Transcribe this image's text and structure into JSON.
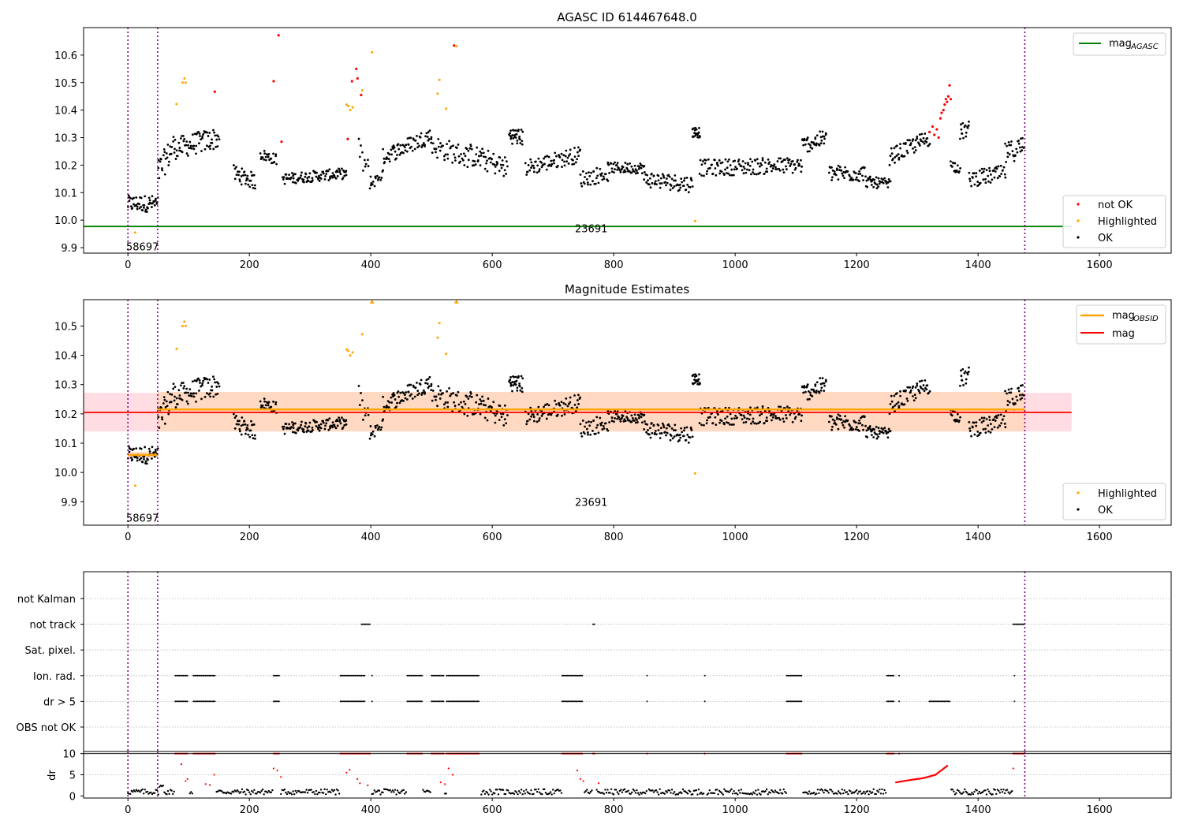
{
  "figure": {
    "title_top": "AGASC ID 614467648.0",
    "title_mid": "Magnitude Estimates"
  },
  "colors": {
    "ok": "#000000",
    "highlighted": "#ffa500",
    "not_ok": "#ff0000",
    "agasc_line": "#008000",
    "mag_line": "#ff0000",
    "mag_obsid_line": "#ffa500",
    "band_outer": "#ffdde3",
    "band_inner": "#ffd9c2",
    "vline": "#800080",
    "grid": "#b0b0b0"
  },
  "chart_data": [
    {
      "type": "scatter",
      "title": "AGASC ID 614467648.0",
      "xlim": [
        -73,
        1718
      ],
      "ylim": [
        9.88,
        10.7
      ],
      "xticks": [
        "0",
        "200",
        "400",
        "600",
        "800",
        "1000",
        "1200",
        "1400",
        "1600"
      ],
      "yticks": [
        "9.9",
        "10.0",
        "10.1",
        "10.2",
        "10.3",
        "10.4",
        "10.5",
        "10.6"
      ],
      "legend_upper": {
        "position": "upper right",
        "entries": [
          "mag_AGASC"
        ]
      },
      "legend_lower": {
        "position": "lower right",
        "entries": [
          "not OK",
          "Highlighted",
          "OK"
        ]
      },
      "agasc_mag": 9.977,
      "agasc_line_x_range": [
        -73,
        1554
      ],
      "obsid_vlines": [
        0,
        49,
        1477
      ],
      "obsid_labels": [
        {
          "text": "58697",
          "x": 24,
          "y": 9.905
        },
        {
          "text": "23691",
          "x": 763,
          "y": 9.97
        }
      ],
      "series": [
        {
          "name": "not OK",
          "points": [
            [
              240,
              10.505
            ],
            [
              248,
              10.672
            ],
            [
              253,
              10.285
            ],
            [
              362,
              10.295
            ],
            [
              369,
              10.505
            ],
            [
              376,
              10.55
            ],
            [
              378,
              10.515
            ],
            [
              384,
              10.455
            ],
            [
              143,
              10.467
            ],
            [
              537,
              10.635
            ],
            [
              1320,
              10.32
            ],
            [
              1325,
              10.34
            ],
            [
              1328,
              10.31
            ],
            [
              1332,
              10.33
            ],
            [
              1335,
              10.3
            ],
            [
              1338,
              10.37
            ],
            [
              1340,
              10.39
            ],
            [
              1343,
              10.4
            ],
            [
              1345,
              10.42
            ],
            [
              1347,
              10.44
            ],
            [
              1349,
              10.43
            ],
            [
              1351,
              10.45
            ],
            [
              1353,
              10.49
            ],
            [
              1355,
              10.44
            ]
          ]
        },
        {
          "name": "Highlighted",
          "points": [
            [
              12,
              9.955
            ],
            [
              80,
              10.422
            ],
            [
              90,
              10.5
            ],
            [
              93,
              10.515
            ],
            [
              95,
              10.5
            ],
            [
              360,
              10.42
            ],
            [
              363,
              10.415
            ],
            [
              366,
              10.4
            ],
            [
              370,
              10.41
            ],
            [
              386,
              10.472
            ],
            [
              402,
              10.61
            ],
            [
              510,
              10.46
            ],
            [
              513,
              10.51
            ],
            [
              524,
              10.405
            ],
            [
              541,
              10.632
            ],
            [
              934,
              9.997
            ]
          ]
        },
        {
          "name": "OK",
          "segments": [
            {
              "x0": 0,
              "x1": 49,
              "n": 50,
              "y0": 10.06,
              "y1": 10.06,
              "spread": 0.03
            },
            {
              "x0": 50,
              "x1": 75,
              "n": 25,
              "y0": 10.17,
              "y1": 10.27,
              "spread": 0.05
            },
            {
              "x0": 76,
              "x1": 150,
              "n": 70,
              "y0": 10.26,
              "y1": 10.3,
              "spread": 0.04
            },
            {
              "x0": 175,
              "x1": 210,
              "n": 35,
              "y0": 10.17,
              "y1": 10.14,
              "spread": 0.03
            },
            {
              "x0": 218,
              "x1": 245,
              "n": 25,
              "y0": 10.24,
              "y1": 10.22,
              "spread": 0.02
            },
            {
              "x0": 255,
              "x1": 360,
              "n": 100,
              "y0": 10.15,
              "y1": 10.17,
              "spread": 0.02
            },
            {
              "x0": 380,
              "x1": 400,
              "n": 12,
              "y0": 10.25,
              "y1": 10.15,
              "spread": 0.05
            },
            {
              "x0": 400,
              "x1": 420,
              "n": 15,
              "y0": 10.13,
              "y1": 10.17,
              "spread": 0.02
            },
            {
              "x0": 420,
              "x1": 500,
              "n": 70,
              "y0": 10.23,
              "y1": 10.31,
              "spread": 0.03
            },
            {
              "x0": 500,
              "x1": 560,
              "n": 45,
              "y0": 10.27,
              "y1": 10.23,
              "spread": 0.04
            },
            {
              "x0": 560,
              "x1": 625,
              "n": 55,
              "y0": 10.24,
              "y1": 10.19,
              "spread": 0.04
            },
            {
              "x0": 628,
              "x1": 650,
              "n": 30,
              "y0": 10.31,
              "y1": 10.3,
              "spread": 0.03
            },
            {
              "x0": 655,
              "x1": 745,
              "n": 75,
              "y0": 10.19,
              "y1": 10.24,
              "spread": 0.03
            },
            {
              "x0": 745,
              "x1": 790,
              "n": 35,
              "y0": 10.15,
              "y1": 10.17,
              "spread": 0.03
            },
            {
              "x0": 790,
              "x1": 850,
              "n": 55,
              "y0": 10.19,
              "y1": 10.19,
              "spread": 0.02
            },
            {
              "x0": 850,
              "x1": 930,
              "n": 70,
              "y0": 10.15,
              "y1": 10.13,
              "spread": 0.03
            },
            {
              "x0": 930,
              "x1": 942,
              "n": 20,
              "y0": 10.32,
              "y1": 10.32,
              "spread": 0.02
            },
            {
              "x0": 942,
              "x1": 1110,
              "n": 140,
              "y0": 10.19,
              "y1": 10.2,
              "spread": 0.03
            },
            {
              "x0": 1110,
              "x1": 1150,
              "n": 40,
              "y0": 10.27,
              "y1": 10.3,
              "spread": 0.03
            },
            {
              "x0": 1155,
              "x1": 1215,
              "n": 55,
              "y0": 10.17,
              "y1": 10.17,
              "spread": 0.03
            },
            {
              "x0": 1215,
              "x1": 1255,
              "n": 40,
              "y0": 10.14,
              "y1": 10.13,
              "spread": 0.02
            },
            {
              "x0": 1255,
              "x1": 1320,
              "n": 60,
              "y0": 10.23,
              "y1": 10.3,
              "spread": 0.03
            },
            {
              "x0": 1355,
              "x1": 1370,
              "n": 15,
              "y0": 10.2,
              "y1": 10.19,
              "spread": 0.02
            },
            {
              "x0": 1370,
              "x1": 1385,
              "n": 15,
              "y0": 10.32,
              "y1": 10.33,
              "spread": 0.03
            },
            {
              "x0": 1385,
              "x1": 1445,
              "n": 50,
              "y0": 10.15,
              "y1": 10.17,
              "spread": 0.03
            },
            {
              "x0": 1445,
              "x1": 1475,
              "n": 28,
              "y0": 10.24,
              "y1": 10.27,
              "spread": 0.04
            }
          ]
        }
      ]
    },
    {
      "type": "scatter",
      "title": "Magnitude Estimates",
      "xlim": [
        -73,
        1718
      ],
      "ylim": [
        9.82,
        10.59
      ],
      "xticks": [
        "0",
        "200",
        "400",
        "600",
        "800",
        "1000",
        "1200",
        "1400",
        "1600"
      ],
      "yticks": [
        "9.9",
        "10.0",
        "10.1",
        "10.2",
        "10.3",
        "10.4",
        "10.5"
      ],
      "legend_upper": {
        "position": "upper right",
        "entries": [
          "mag_OBSID",
          "mag"
        ]
      },
      "legend_lower": {
        "position": "lower right",
        "entries": [
          "Highlighted",
          "OK"
        ]
      },
      "mag": 10.205,
      "mag_band": [
        10.14,
        10.272
      ],
      "mag_line_x_range": [
        -73,
        1554
      ],
      "mag_obsid": [
        {
          "x0": 0,
          "x1": 49,
          "mag": 10.06,
          "band": [
            10.05,
            10.07
          ]
        },
        {
          "x0": 49,
          "x1": 1477,
          "mag": 10.215,
          "band": [
            10.14,
            10.275
          ]
        }
      ],
      "obsid_vlines": [
        0,
        49,
        1477
      ],
      "obsid_labels": [
        {
          "text": "58697",
          "x": 24,
          "y": 9.845
        },
        {
          "text": "23691",
          "x": 763,
          "y": 9.9
        }
      ],
      "highlighted_markers": [
        [
          402,
          10.585
        ],
        [
          541,
          10.585
        ]
      ]
    },
    {
      "type": "scatter",
      "xlim": [
        -73,
        1718
      ],
      "categories": [
        "not Kalman",
        "not track",
        "Sat. pixel.",
        "Ion. rad.",
        "dr > 5",
        "OBS not OK"
      ],
      "flags": {
        "not track": [
          [
            385,
            400
          ],
          [
            766,
            770
          ],
          [
            1458,
            1477
          ]
        ],
        "Ion. rad.": [
          [
            78,
            100
          ],
          [
            108,
            145
          ],
          [
            240,
            250
          ],
          [
            350,
            390
          ],
          [
            402,
            404
          ],
          [
            460,
            485
          ],
          [
            500,
            520
          ],
          [
            525,
            580
          ],
          [
            715,
            750
          ],
          [
            855,
            857
          ],
          [
            950,
            952
          ],
          [
            1085,
            1110
          ],
          [
            1250,
            1262
          ],
          [
            1270,
            1272
          ],
          [
            1460,
            1462
          ]
        ],
        "dr > 5": [
          [
            78,
            100
          ],
          [
            108,
            145
          ],
          [
            240,
            250
          ],
          [
            350,
            390
          ],
          [
            402,
            404
          ],
          [
            460,
            485
          ],
          [
            500,
            520
          ],
          [
            525,
            580
          ],
          [
            715,
            750
          ],
          [
            855,
            857
          ],
          [
            950,
            952
          ],
          [
            1085,
            1110
          ],
          [
            1250,
            1262
          ],
          [
            1270,
            1272
          ],
          [
            1320,
            1355
          ],
          [
            1460,
            1462
          ]
        ]
      },
      "obsid_vlines": [
        0,
        49,
        1477
      ]
    },
    {
      "type": "scatter",
      "ylabel": "dr",
      "xlim": [
        -73,
        1718
      ],
      "ylim": [
        -0.5,
        10.5
      ],
      "yticks": [
        "0",
        "5",
        "10"
      ],
      "xticks": [
        "0",
        "200",
        "400",
        "600",
        "800",
        "1000",
        "1200",
        "1400",
        "1600"
      ],
      "threshold_line": 10,
      "dr_clip_x": [
        [
          78,
          100
        ],
        [
          108,
          145
        ],
        [
          240,
          250
        ],
        [
          350,
          400
        ],
        [
          460,
          485
        ],
        [
          500,
          520
        ],
        [
          525,
          580
        ],
        [
          715,
          750
        ],
        [
          766,
          770
        ],
        [
          855,
          857
        ],
        [
          950,
          952
        ],
        [
          1085,
          1110
        ],
        [
          1250,
          1262
        ],
        [
          1270,
          1272
        ],
        [
          1458,
          1477
        ]
      ],
      "dr_red_curve": [
        [
          1265,
          3.2
        ],
        [
          1290,
          3.8
        ],
        [
          1310,
          4.2
        ],
        [
          1330,
          5.0
        ],
        [
          1350,
          7.2
        ]
      ],
      "obsid_vlines": [
        0,
        49,
        1477
      ]
    }
  ],
  "legend_labels": {
    "agasc": "mag",
    "agasc_sub": "AGASC",
    "obsid": "mag",
    "obsid_sub": "OBSID",
    "mag": "mag",
    "not_ok": "not OK",
    "highlighted": "Highlighted",
    "ok": "OK"
  }
}
